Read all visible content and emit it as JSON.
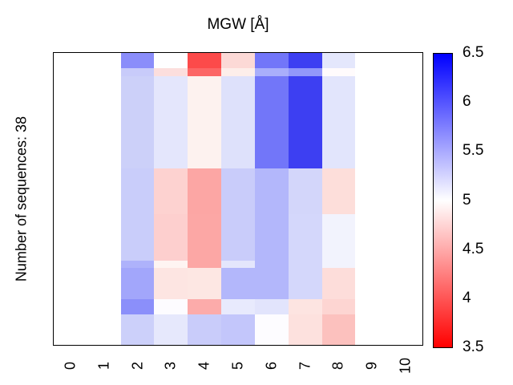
{
  "figure": {
    "title": "MGW [Å]",
    "ylabel": "Number of sequences: 38"
  },
  "chart_data": {
    "type": "heatmap",
    "title": "MGW [Å]",
    "ylabel": "Number of sequences: 38",
    "n_sequences": 38,
    "value_unit": "Å",
    "x_tick_labels": [
      "0",
      "1",
      "2",
      "3",
      "4",
      "5",
      "6",
      "7",
      "8",
      "9",
      "10"
    ],
    "n_columns": 11,
    "data_columns": [
      2,
      3,
      4,
      5,
      6,
      7,
      8
    ],
    "empty_columns": [
      0,
      1,
      9,
      10
    ],
    "grid": false,
    "legend": false,
    "colorbar": {
      "position": "right",
      "min": 3.5,
      "max": 6.5,
      "mid": 5.0,
      "tick_labels": [
        "6.5",
        "6",
        "5.5",
        "5",
        "4.5",
        "4",
        "3.5"
      ],
      "low_color": "#ff0000",
      "mid_color": "#ffffff",
      "high_color": "#0000ff"
    },
    "row_groups": [
      {
        "sequences": 2,
        "values": [
          5.7,
          5.0,
          3.9,
          4.8,
          5.8,
          6.1,
          5.15
        ],
        "colors": [
          "#8a8dfa",
          "#fefeff",
          "#fc4a4a",
          "#fcd9d6",
          "#7276f9",
          "#3d3ff2",
          "#e4e7fc"
        ]
      },
      {
        "sequences": 1,
        "values": [
          5.3,
          4.8,
          4.1,
          4.9,
          5.5,
          5.65,
          5.0
        ],
        "colors": [
          "#c8cbfa",
          "#fcdedd",
          "#fc6665",
          "#fdeeea",
          "#a9aefb",
          "#9297fa",
          "#fffbfc"
        ]
      },
      {
        "sequences": 12,
        "values": [
          5.3,
          5.15,
          4.9,
          5.2,
          5.8,
          6.1,
          5.15
        ],
        "colors": [
          "#ccd0f9",
          "#e4e6fc",
          "#fdf2ef",
          "#dee1fb",
          "#7276f9",
          "#3d3ff2",
          "#e2e5fc"
        ]
      },
      {
        "sequences": 6,
        "values": [
          5.3,
          4.75,
          4.5,
          5.3,
          5.45,
          5.25,
          4.8
        ],
        "colors": [
          "#c9cdfa",
          "#fdd2d0",
          "#fca6a4",
          "#c9ccfa",
          "#b3b7fb",
          "#d3d6fa",
          "#fddeda"
        ]
      },
      {
        "sequences": 6,
        "values": [
          5.3,
          4.75,
          4.5,
          5.3,
          5.45,
          5.25,
          5.1
        ],
        "colors": [
          "#c9cdfa",
          "#fdcfce",
          "#fca7a5",
          "#c9ccfa",
          "#b3b7fb",
          "#d4d7fb",
          "#f2f3fd"
        ]
      },
      {
        "sequences": 1,
        "values": [
          5.5,
          4.95,
          4.5,
          5.15,
          5.45,
          5.25,
          5.1
        ],
        "colors": [
          "#aeb2fb",
          "#fef4f2",
          "#fca7a5",
          "#e4e6fc",
          "#b3b7fb",
          "#d4d7fb",
          "#f2f3fd"
        ]
      },
      {
        "sequences": 4,
        "values": [
          5.55,
          4.85,
          4.85,
          5.45,
          5.45,
          5.25,
          4.8
        ],
        "colors": [
          "#a2a6fb",
          "#fde5e2",
          "#fde7e3",
          "#b3b7fb",
          "#b3b7fb",
          "#d4d7fb",
          "#fdddda"
        ]
      },
      {
        "sequences": 2,
        "values": [
          5.7,
          5.0,
          4.5,
          5.15,
          5.15,
          4.85,
          4.75
        ],
        "colors": [
          "#8b8ffa",
          "#fdfcff",
          "#fcabaa",
          "#e8eafd",
          "#e2e4fc",
          "#fde4e1",
          "#fdd5d2"
        ]
      },
      {
        "sequences": 4,
        "values": [
          5.3,
          5.15,
          5.3,
          5.35,
          5.0,
          4.85,
          4.65
        ],
        "colors": [
          "#ccd0fa",
          "#e6e8fc",
          "#c9ccfa",
          "#c3c6fb",
          "#fdfcff",
          "#fde1de",
          "#fcc1be"
        ]
      }
    ]
  }
}
